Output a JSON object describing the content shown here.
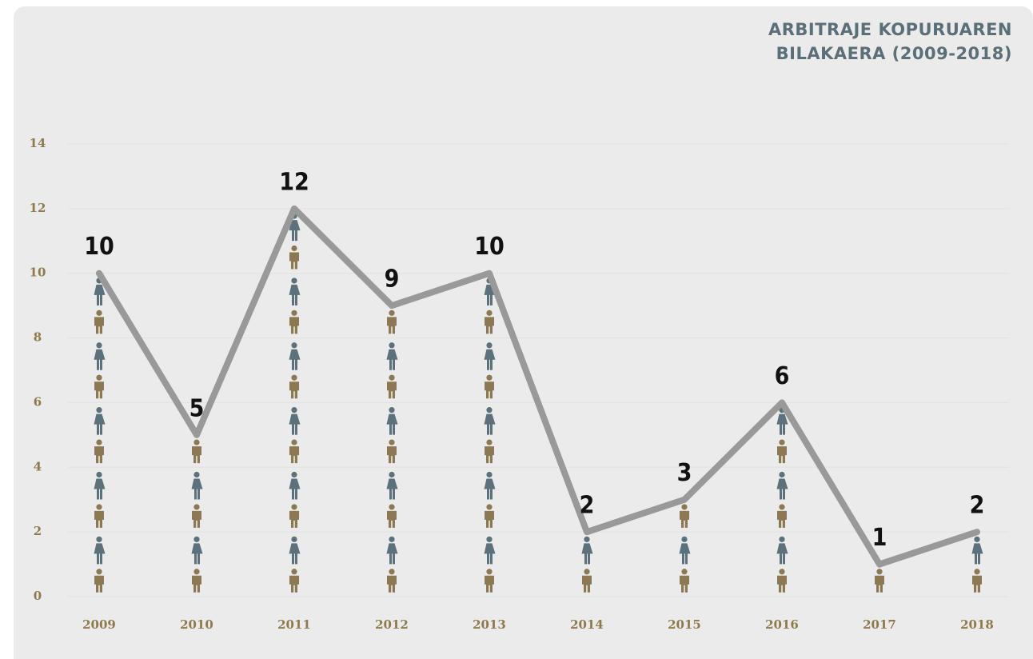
{
  "chart_data": {
    "type": "pictogram-line",
    "title": "ARBITRAJE KOPURUAREN BILAKAERA (2009-2018)",
    "categories": [
      "2009",
      "2010",
      "2011",
      "2012",
      "2013",
      "2014",
      "2015",
      "2016",
      "2017",
      "2018"
    ],
    "values": [
      10,
      5,
      12,
      9,
      10,
      2,
      3,
      6,
      1,
      2
    ],
    "color": "#999999",
    "icon_colors": [
      "#8c7852",
      "#5b717b"
    ],
    "ylim": [
      0,
      14
    ],
    "yticks": [
      0,
      2,
      4,
      6,
      8,
      10,
      12,
      14
    ],
    "grid": true
  }
}
